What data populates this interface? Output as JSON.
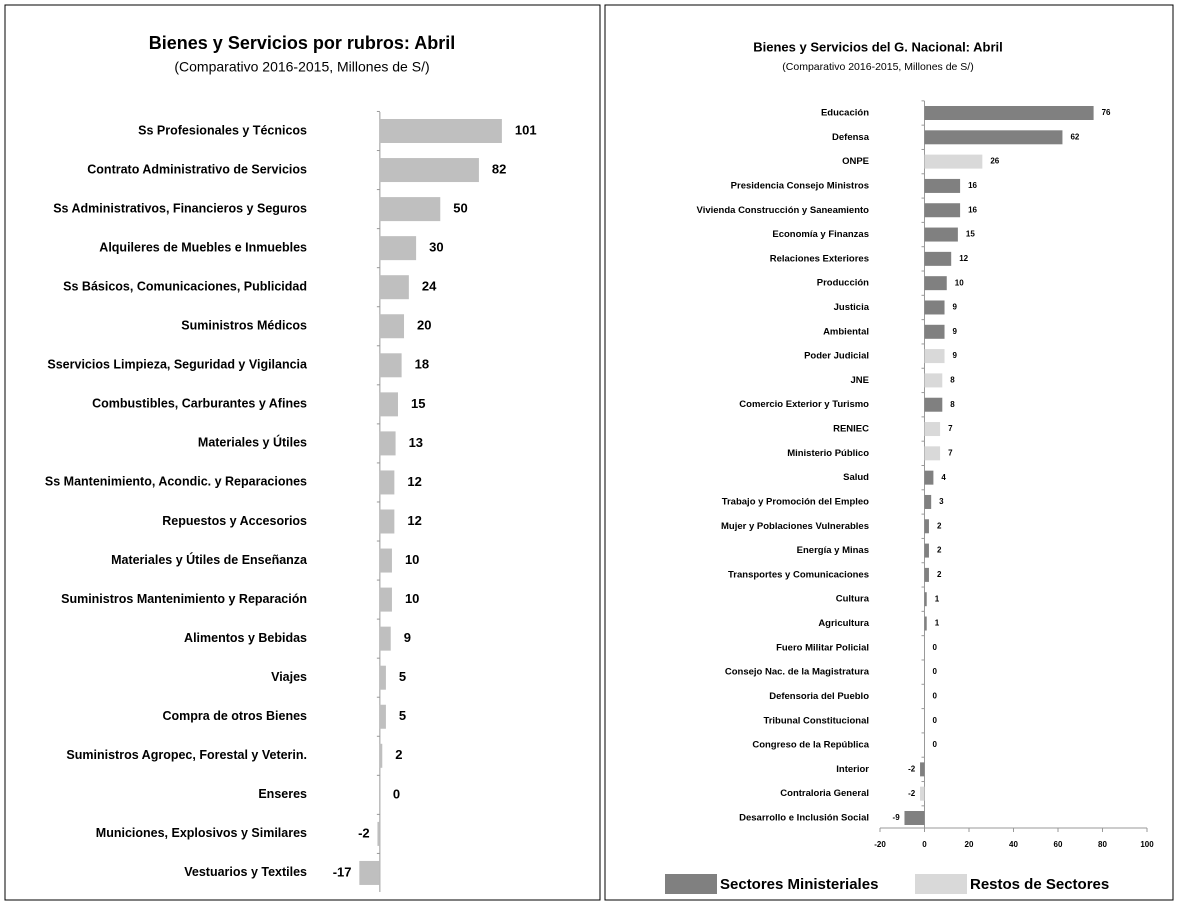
{
  "chart_data": [
    {
      "type": "bar",
      "orientation": "horizontal",
      "title": "Bienes y Servicios por rubros:  Abril",
      "subtitle": "(Comparativo 2016-2015,  Millones de S/)",
      "categories": [
        "Ss Profesionales y Técnicos",
        "Contrato Administrativo de Servicios",
        "Ss Administrativos, Financieros y Seguros",
        "Alquileres de Muebles e Inmuebles",
        "Ss Básicos, Comunicaciones, Publicidad",
        "Suministros Médicos",
        "Sservicios Limpieza, Seguridad y Vigilancia",
        "Combustibles, Carburantes y Afines",
        "Materiales y  Útiles",
        "Ss Mantenimiento, Acondic. y  Reparaciones",
        "Repuestos y Accesorios",
        "Materiales y Útiles de Enseñanza",
        "Suministros Mantenimiento y Reparación",
        "Alimentos y Bebidas",
        "Viajes",
        "Compra de otros Bienes",
        "Suministros Agropec, Forestal y Veterin.",
        "Enseres",
        "Municiones,  Explosivos y Similares",
        "Vestuarios y Textiles"
      ],
      "values": [
        101,
        82,
        50,
        30,
        24,
        20,
        18,
        15,
        13,
        12,
        12,
        10,
        10,
        9,
        5,
        5,
        2,
        0,
        -2,
        -17
      ],
      "color": "#bfbfbf",
      "xlim": [
        -33,
        116
      ]
    },
    {
      "type": "bar",
      "orientation": "horizontal",
      "title": "Bienes y Servicios del G. Nacional: Abril",
      "subtitle": "(Comparativo 2016-2015, Millones de S/)",
      "categories": [
        "Educación",
        "Defensa",
        "ONPE",
        "Presidencia Consejo Ministros",
        "Vivienda Construcción y Saneamiento",
        "Economía y Finanzas",
        "Relaciones Exteriores",
        "Producción",
        "Justicia",
        "Ambiental",
        "Poder Judicial",
        "JNE",
        "Comercio Exterior y Turismo",
        "RENIEC",
        "Ministerio Público",
        "Salud",
        "Trabajo y Promoción del Empleo",
        "Mujer y Poblaciones Vulnerables",
        "Energía y Minas",
        "Transportes y Comunicaciones",
        "Cultura",
        "Agricultura",
        "Fuero Militar Policial",
        "Consejo Nac. de la Magistratura",
        "Defensoria del Pueblo",
        "Tribunal Constitucional",
        "Congreso de la República",
        "Interior",
        "Contraloria General",
        "Desarrollo e Inclusión Social"
      ],
      "series": [
        {
          "name": "Sectores Ministeriales",
          "color": "#808080",
          "values": [
            76,
            62,
            null,
            16,
            16,
            15,
            12,
            10,
            9,
            9,
            null,
            null,
            8,
            null,
            null,
            4,
            3,
            2,
            2,
            2,
            1,
            1,
            null,
            null,
            null,
            null,
            null,
            -2,
            null,
            -9
          ]
        },
        {
          "name": "Restos de Sectores",
          "color": "#d9d9d9",
          "values": [
            null,
            null,
            26,
            null,
            null,
            null,
            null,
            null,
            null,
            null,
            9,
            8,
            null,
            7,
            7,
            null,
            null,
            null,
            null,
            null,
            null,
            null,
            0,
            0,
            0,
            0,
            0,
            null,
            -2,
            null
          ]
        }
      ],
      "xlim": [
        -20,
        100
      ],
      "xticks": [
        -20,
        0,
        20,
        40,
        60,
        80,
        100
      ]
    }
  ]
}
